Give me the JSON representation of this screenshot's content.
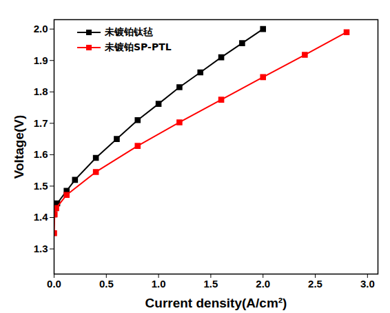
{
  "chart_data": {
    "type": "line",
    "x_label": "Current density(A/cm²)",
    "y_label": "Voltage(V)",
    "xlim": [
      0,
      3.1
    ],
    "ylim": [
      1.22,
      2.03
    ],
    "xticks": [
      {
        "value": 0,
        "label": "0.0"
      },
      0.5,
      {
        "value": 1,
        "label": "1.0"
      },
      1.5,
      {
        "value": 2,
        "label": "2.0"
      },
      2.5,
      {
        "value": 3,
        "label": "3.0"
      }
    ],
    "yticks": [
      1.3,
      1.4,
      1.5,
      1.6,
      1.7,
      1.8,
      1.9,
      {
        "value": 2,
        "label": "2.0"
      }
    ],
    "grid": false,
    "legend": "upper left",
    "marker": "square",
    "series": [
      {
        "name": "未镀铂钛毡",
        "color": "#000000",
        "x": [
          0.0,
          0.01,
          0.03,
          0.12,
          0.2,
          0.4,
          0.6,
          0.8,
          1.0,
          1.2,
          1.4,
          1.6,
          1.8,
          2.0
        ],
        "values": [
          1.41,
          1.43,
          1.445,
          1.485,
          1.52,
          1.59,
          1.65,
          1.71,
          1.762,
          1.815,
          1.862,
          1.91,
          1.955,
          2.0
        ]
      },
      {
        "name": "未镀铂SP-PTL",
        "color": "#ff0000",
        "x": [
          0.0,
          0.005,
          0.02,
          0.12,
          0.4,
          0.8,
          1.2,
          1.6,
          2.0,
          2.4,
          2.8
        ],
        "values": [
          1.35,
          1.41,
          1.43,
          1.472,
          1.545,
          1.628,
          1.703,
          1.775,
          1.847,
          1.918,
          1.99
        ]
      }
    ]
  }
}
